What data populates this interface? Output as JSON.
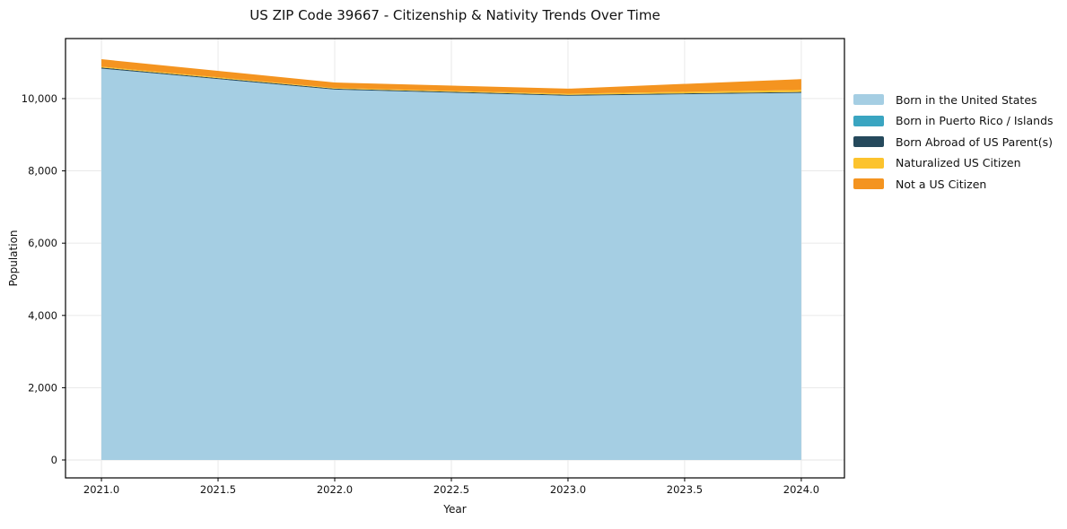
{
  "chart_data": {
    "type": "area",
    "stacked": true,
    "title": "US ZIP Code 39667 - Citizenship & Nativity Trends Over Time",
    "xlabel": "Year",
    "ylabel": "Population",
    "x": [
      2021,
      2022,
      2023,
      2024
    ],
    "series": [
      {
        "name": "Born in the United States",
        "color": "#A5CEE3",
        "values": [
          10830,
          10250,
          10080,
          10160
        ]
      },
      {
        "name": "Born in Puerto Rico / Islands",
        "color": "#3AA5C1",
        "values": [
          0,
          0,
          0,
          0
        ]
      },
      {
        "name": "Born Abroad of US Parent(s)",
        "color": "#25495C",
        "values": [
          30,
          25,
          25,
          25
        ]
      },
      {
        "name": "Naturalized US Citizen",
        "color": "#FCC32D",
        "values": [
          25,
          20,
          30,
          55
        ]
      },
      {
        "name": "Not a US Citizen",
        "color": "#F49420",
        "values": [
          205,
          150,
          140,
          300
        ]
      }
    ],
    "x_ticks": [
      {
        "value": 2021.0,
        "label": "2021.0"
      },
      {
        "value": 2021.5,
        "label": "2021.5"
      },
      {
        "value": 2022.0,
        "label": "2022.0"
      },
      {
        "value": 2022.5,
        "label": "2022.5"
      },
      {
        "value": 2023.0,
        "label": "2023.0"
      },
      {
        "value": 2023.5,
        "label": "2023.5"
      },
      {
        "value": 2024.0,
        "label": "2024.0"
      }
    ],
    "y_ticks": [
      {
        "value": 0,
        "label": "0"
      },
      {
        "value": 2000,
        "label": "2,000"
      },
      {
        "value": 4000,
        "label": "4,000"
      },
      {
        "value": 6000,
        "label": "6,000"
      },
      {
        "value": 8000,
        "label": "8,000"
      },
      {
        "value": 10000,
        "label": "10,000"
      }
    ],
    "xlim": [
      2020.846,
      2024.185
    ],
    "ylim": [
      -496,
      11662
    ],
    "grid": true,
    "grid_color": "#e6e6e6",
    "spine_color": "#000000",
    "legend_position": "right"
  }
}
